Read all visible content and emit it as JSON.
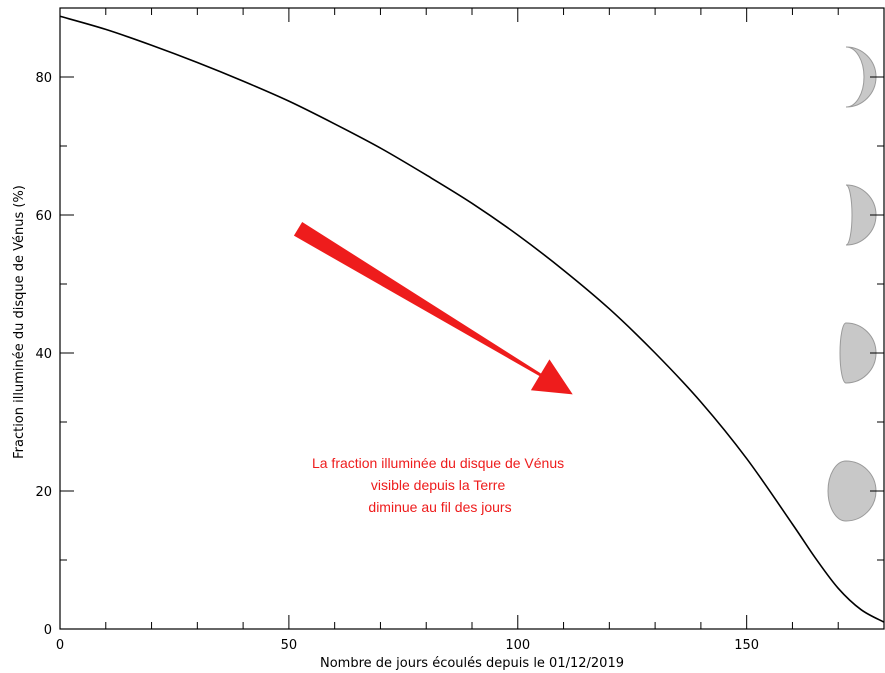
{
  "chart_data": {
    "type": "line",
    "title": "",
    "xlabel": "Nombre de jours écoulés depuis le 01/12/2019",
    "ylabel": "Fraction illuminée du disque de Vénus (%)",
    "xlim": [
      0,
      180
    ],
    "ylim": [
      0,
      90
    ],
    "x_ticks": [
      0,
      50,
      100,
      150
    ],
    "x_tick_labels": [
      "0",
      "50",
      "100",
      "150"
    ],
    "y_ticks": [
      0,
      20,
      40,
      60,
      80
    ],
    "y_tick_labels": [
      "0",
      "20",
      "40",
      "60",
      "80"
    ],
    "grid": false,
    "series": [
      {
        "x": [
          0,
          10,
          20,
          30,
          40,
          50,
          60,
          70,
          80,
          90,
          100,
          110,
          120,
          130,
          140,
          150,
          160,
          165,
          170,
          175,
          180
        ],
        "y": [
          88.8,
          86.9,
          84.6,
          82.1,
          79.4,
          76.5,
          73.2,
          69.7,
          65.8,
          61.7,
          57.1,
          52.0,
          46.4,
          40.0,
          32.9,
          24.7,
          15.2,
          10.3,
          5.9,
          2.8,
          1.0
        ]
      }
    ],
    "annotation": {
      "lines": [
        "La fraction illuminée du disque de Vénus",
        "visible depuis la Terre",
        "diminue au fil des jours"
      ],
      "color": "#ee1c1c",
      "arrow_from": [
        52,
        58
      ],
      "arrow_to": [
        112,
        34
      ]
    },
    "phase_markers": [
      {
        "fraction": 80,
        "y": 80
      },
      {
        "fraction": 60,
        "y": 60
      },
      {
        "fraction": 40,
        "y": 40
      },
      {
        "fraction": 20,
        "y": 20
      }
    ],
    "line_color": "#000000",
    "phase_fill": "#c8c8c8",
    "phase_stroke": "#9a9a9a"
  }
}
